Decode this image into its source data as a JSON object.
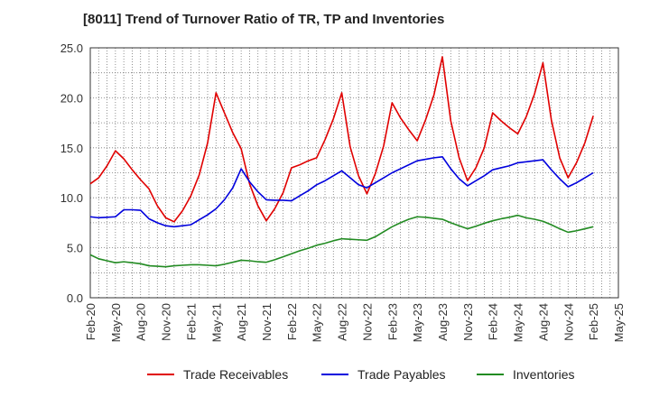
{
  "title": "[8011]  Trend of Turnover Ratio of TR, TP and Inventories",
  "chart_data": {
    "type": "line",
    "title": "[8011]  Trend of Turnover Ratio of TR, TP and Inventories",
    "xlabel": "",
    "ylabel": "",
    "ylim": [
      0,
      25
    ],
    "yticks": [
      "0.0",
      "5.0",
      "10.0",
      "15.0",
      "20.0",
      "25.0"
    ],
    "x_tick_labels": [
      "Feb-20",
      "May-20",
      "Aug-20",
      "Nov-20",
      "Feb-21",
      "May-21",
      "Aug-21",
      "Nov-21",
      "Feb-22",
      "May-22",
      "Aug-22",
      "Nov-22",
      "Feb-23",
      "May-23",
      "Aug-23",
      "Nov-23",
      "Feb-24",
      "May-24",
      "Aug-24",
      "Nov-24",
      "Feb-25",
      "May-25"
    ],
    "x": [
      "2020-02",
      "2020-03",
      "2020-04",
      "2020-05",
      "2020-06",
      "2020-07",
      "2020-08",
      "2020-09",
      "2020-10",
      "2020-11",
      "2020-12",
      "2021-01",
      "2021-02",
      "2021-03",
      "2021-04",
      "2021-05",
      "2021-06",
      "2021-07",
      "2021-08",
      "2021-09",
      "2021-10",
      "2021-11",
      "2021-12",
      "2022-01",
      "2022-02",
      "2022-03",
      "2022-04",
      "2022-05",
      "2022-06",
      "2022-07",
      "2022-08",
      "2022-09",
      "2022-10",
      "2022-11",
      "2022-12",
      "2023-01",
      "2023-02",
      "2023-03",
      "2023-04",
      "2023-05",
      "2023-06",
      "2023-07",
      "2023-08",
      "2023-09",
      "2023-10",
      "2023-11",
      "2023-12",
      "2024-01",
      "2024-02",
      "2024-03",
      "2024-04",
      "2024-05",
      "2024-06",
      "2024-07",
      "2024-08",
      "2024-09",
      "2024-10",
      "2024-11",
      "2024-12",
      "2025-01",
      "2025-02"
    ],
    "grid": true,
    "legend_position": "bottom",
    "series": [
      {
        "name": "Trade Receivables",
        "color": "#e00000",
        "values": [
          11.4,
          12.0,
          13.2,
          14.7,
          13.9,
          12.8,
          11.8,
          10.9,
          9.2,
          8.0,
          7.6,
          8.7,
          10.2,
          12.3,
          15.5,
          20.5,
          18.5,
          16.5,
          14.9,
          11.4,
          9.2,
          7.7,
          8.9,
          10.5,
          13.0,
          13.3,
          13.7,
          14.0,
          15.8,
          17.9,
          20.5,
          15.1,
          12.2,
          10.4,
          12.4,
          15.2,
          19.5,
          18.0,
          16.8,
          15.7,
          17.8,
          20.3,
          24.1,
          17.7,
          14.0,
          11.7,
          13.0,
          15.0,
          18.5,
          17.7,
          17.0,
          16.4,
          18.1,
          20.4,
          23.5,
          17.8,
          14.0,
          12.0,
          13.5,
          15.5,
          18.2
        ]
      },
      {
        "name": "Trade Payables",
        "color": "#0000dd",
        "values": [
          8.1,
          8.0,
          8.05,
          8.1,
          8.8,
          8.8,
          8.75,
          7.9,
          7.5,
          7.2,
          7.1,
          7.2,
          7.3,
          7.8,
          8.3,
          8.9,
          9.8,
          11.0,
          12.9,
          11.6,
          10.6,
          9.8,
          9.75,
          9.75,
          9.7,
          10.2,
          10.7,
          11.3,
          11.7,
          12.2,
          12.7,
          12.0,
          11.3,
          11.0,
          11.5,
          12.0,
          12.5,
          12.9,
          13.3,
          13.7,
          13.85,
          14.0,
          14.1,
          12.9,
          11.9,
          11.2,
          11.7,
          12.2,
          12.8,
          13.0,
          13.2,
          13.5,
          13.6,
          13.7,
          13.8,
          12.8,
          11.9,
          11.1,
          11.5,
          12.0,
          12.5
        ]
      },
      {
        "name": "Inventories",
        "color": "#228b22",
        "values": [
          4.3,
          3.9,
          3.7,
          3.5,
          3.6,
          3.5,
          3.4,
          3.2,
          3.15,
          3.1,
          3.2,
          3.25,
          3.3,
          3.3,
          3.25,
          3.2,
          3.35,
          3.55,
          3.75,
          3.7,
          3.6,
          3.55,
          3.8,
          4.1,
          4.4,
          4.7,
          4.95,
          5.25,
          5.45,
          5.7,
          5.9,
          5.85,
          5.8,
          5.75,
          6.1,
          6.6,
          7.1,
          7.5,
          7.85,
          8.1,
          8.05,
          7.95,
          7.85,
          7.5,
          7.2,
          6.9,
          7.15,
          7.45,
          7.7,
          7.9,
          8.05,
          8.25,
          8.0,
          7.85,
          7.65,
          7.3,
          6.9,
          6.55,
          6.7,
          6.9,
          7.1
        ]
      }
    ]
  }
}
